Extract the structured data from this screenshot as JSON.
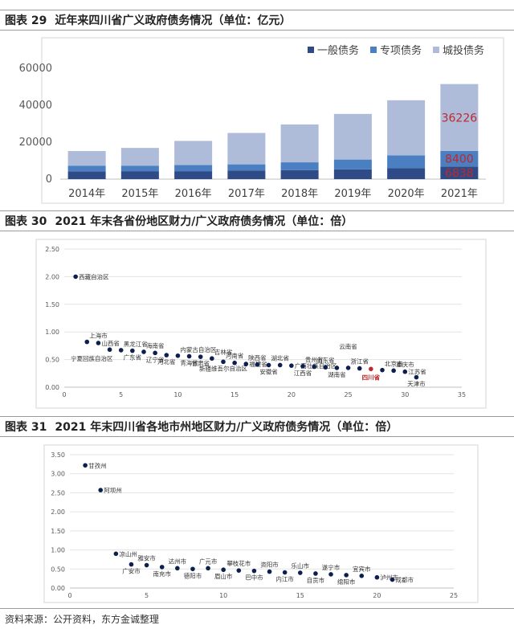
{
  "figures": [
    {
      "number": "图表 29",
      "title": "近年来四川省广义政府债务情况（单位：亿元）"
    },
    {
      "number": "图表 30",
      "title": "2021 年末各省份地区财力/广义政府债务情况（单位：倍）"
    },
    {
      "number": "图表 31",
      "title": "2021 年末四川省各地市州地区财力/广义政府债务情况（单位：倍）"
    }
  ],
  "source": "资料来源：公开资料，东方金诚整理",
  "colors": {
    "general": "#2e4a87",
    "special": "#4a7fc1",
    "chengtou": "#aebcd9",
    "point": "#0d1f4f",
    "highlight": "#c0282c",
    "label_red": "#c0282c"
  },
  "chart_data": [
    {
      "type": "bar",
      "stacked": true,
      "categories": [
        "2014年",
        "2015年",
        "2016年",
        "2017年",
        "2018年",
        "2019年",
        "2020年",
        "2021年"
      ],
      "series": [
        {
          "name": "一般债务",
          "values": [
            4200,
            4300,
            4300,
            4700,
            4900,
            5300,
            5900,
            6838
          ]
        },
        {
          "name": "专项债务",
          "values": [
            3100,
            3000,
            3300,
            3300,
            4200,
            5300,
            7000,
            8400
          ]
        },
        {
          "name": "城投债务",
          "values": [
            7900,
            9600,
            13100,
            17000,
            20500,
            24700,
            29800,
            36226
          ]
        }
      ],
      "ylim": [
        0,
        60000
      ],
      "yticks": [
        0,
        20000,
        40000,
        60000
      ],
      "data_labels": [
        {
          "series": 2,
          "index": 7,
          "text": "36226"
        },
        {
          "series": 1,
          "index": 7,
          "text": "8400"
        },
        {
          "series": 0,
          "index": 7,
          "text": "6838"
        }
      ],
      "legend": "top-right"
    },
    {
      "type": "scatter",
      "xlim": [
        0,
        35
      ],
      "ylim": [
        0,
        2.5
      ],
      "xticks": [
        0,
        5,
        10,
        15,
        20,
        25,
        30,
        35
      ],
      "yticks": [
        "0.00",
        "0.50",
        "1.00",
        "1.50",
        "2.00",
        "2.50"
      ],
      "highlight": "四川省",
      "points": [
        {
          "x": 1,
          "y": 2.0,
          "label": "西藏自治区",
          "pos": "r"
        },
        {
          "x": 2,
          "y": 0.82,
          "label": "上海市",
          "pos": "ur"
        },
        {
          "x": 3,
          "y": 0.8,
          "label": "山西省",
          "pos": "r"
        },
        {
          "x": 4,
          "y": 0.68,
          "label": "宁夏回族自治区",
          "pos": "bl"
        },
        {
          "x": 5,
          "y": 0.67,
          "label": "黑龙江省",
          "pos": "ur"
        },
        {
          "x": 6,
          "y": 0.66,
          "label": "广东省",
          "pos": "b"
        },
        {
          "x": 7,
          "y": 0.64,
          "label": "海南省",
          "pos": "ur"
        },
        {
          "x": 8,
          "y": 0.62,
          "label": "辽宁省",
          "pos": "b"
        },
        {
          "x": 9,
          "y": 0.58,
          "label": "河北省",
          "pos": "b"
        },
        {
          "x": 10,
          "y": 0.57,
          "label": "内蒙古自治区",
          "pos": "ur"
        },
        {
          "x": 11,
          "y": 0.56,
          "label": "青海省",
          "pos": "b"
        },
        {
          "x": 12,
          "y": 0.55,
          "label": "甘肃省",
          "pos": "b"
        },
        {
          "x": 13,
          "y": 0.52,
          "label": "吉林省",
          "pos": "ur"
        },
        {
          "x": 14,
          "y": 0.46,
          "label": "新疆维吾尔自治区",
          "pos": "b"
        },
        {
          "x": 15,
          "y": 0.44,
          "label": "河南省",
          "pos": "u"
        },
        {
          "x": 16,
          "y": 0.42,
          "label": "福建省",
          "pos": "r"
        },
        {
          "x": 17,
          "y": 0.41,
          "label": "陕西省",
          "pos": "u"
        },
        {
          "x": 18,
          "y": 0.4,
          "label": "安徽省",
          "pos": "b"
        },
        {
          "x": 19,
          "y": 0.4,
          "label": "湖北省",
          "pos": "u"
        },
        {
          "x": 20,
          "y": 0.39,
          "label": "广西壮族自治区",
          "pos": "r"
        },
        {
          "x": 21,
          "y": 0.38,
          "label": "江西省",
          "pos": "b"
        },
        {
          "x": 22,
          "y": 0.37,
          "label": "贵州省",
          "pos": "u"
        },
        {
          "x": 23,
          "y": 0.36,
          "label": "山东省",
          "pos": "u"
        },
        {
          "x": 24,
          "y": 0.35,
          "label": "湖南省",
          "pos": "b"
        },
        {
          "x": 25,
          "y": 0.35,
          "label": "云南省",
          "pos": "uu"
        },
        {
          "x": 26,
          "y": 0.34,
          "label": "浙江省",
          "pos": "u"
        },
        {
          "x": 27,
          "y": 0.33,
          "label": "四川省",
          "pos": "b"
        },
        {
          "x": 28,
          "y": 0.31,
          "label": "北京市",
          "pos": "ur"
        },
        {
          "x": 29,
          "y": 0.3,
          "label": "重庆市",
          "pos": "ur"
        },
        {
          "x": 30,
          "y": 0.28,
          "label": "江苏省",
          "pos": "r"
        },
        {
          "x": 31,
          "y": 0.18,
          "label": "天津市",
          "pos": "b"
        }
      ]
    },
    {
      "type": "scatter",
      "xlim": [
        0,
        25
      ],
      "ylim": [
        0,
        3.5
      ],
      "xticks": [
        0,
        5,
        10,
        15,
        20,
        25
      ],
      "yticks": [
        "0.00",
        "0.50",
        "1.00",
        "1.50",
        "2.00",
        "2.50",
        "3.00",
        "3.50"
      ],
      "points": [
        {
          "x": 1,
          "y": 3.22,
          "label": "甘孜州",
          "pos": "r"
        },
        {
          "x": 2,
          "y": 2.57,
          "label": "阿坝州",
          "pos": "r"
        },
        {
          "x": 3,
          "y": 0.9,
          "label": "凉山州",
          "pos": "r"
        },
        {
          "x": 4,
          "y": 0.62,
          "label": "广安市",
          "pos": "b"
        },
        {
          "x": 5,
          "y": 0.6,
          "label": "雅安市",
          "pos": "u"
        },
        {
          "x": 6,
          "y": 0.55,
          "label": "南充市",
          "pos": "b"
        },
        {
          "x": 7,
          "y": 0.52,
          "label": "达州市",
          "pos": "u"
        },
        {
          "x": 8,
          "y": 0.5,
          "label": "德阳市",
          "pos": "b"
        },
        {
          "x": 9,
          "y": 0.52,
          "label": "广元市",
          "pos": "u"
        },
        {
          "x": 10,
          "y": 0.48,
          "label": "眉山市",
          "pos": "b"
        },
        {
          "x": 11,
          "y": 0.46,
          "label": "攀枝花市",
          "pos": "u"
        },
        {
          "x": 12,
          "y": 0.45,
          "label": "巴中市",
          "pos": "b"
        },
        {
          "x": 13,
          "y": 0.43,
          "label": "资阳市",
          "pos": "u"
        },
        {
          "x": 14,
          "y": 0.41,
          "label": "内江市",
          "pos": "b"
        },
        {
          "x": 15,
          "y": 0.4,
          "label": "乐山市",
          "pos": "u"
        },
        {
          "x": 16,
          "y": 0.38,
          "label": "自贡市",
          "pos": "b"
        },
        {
          "x": 17,
          "y": 0.36,
          "label": "遂宁市",
          "pos": "u"
        },
        {
          "x": 18,
          "y": 0.34,
          "label": "绵阳市",
          "pos": "b"
        },
        {
          "x": 19,
          "y": 0.32,
          "label": "宜宾市",
          "pos": "u"
        },
        {
          "x": 20,
          "y": 0.28,
          "label": "泸州市",
          "pos": "r"
        },
        {
          "x": 21,
          "y": 0.22,
          "label": "成都市",
          "pos": "r"
        }
      ]
    }
  ]
}
